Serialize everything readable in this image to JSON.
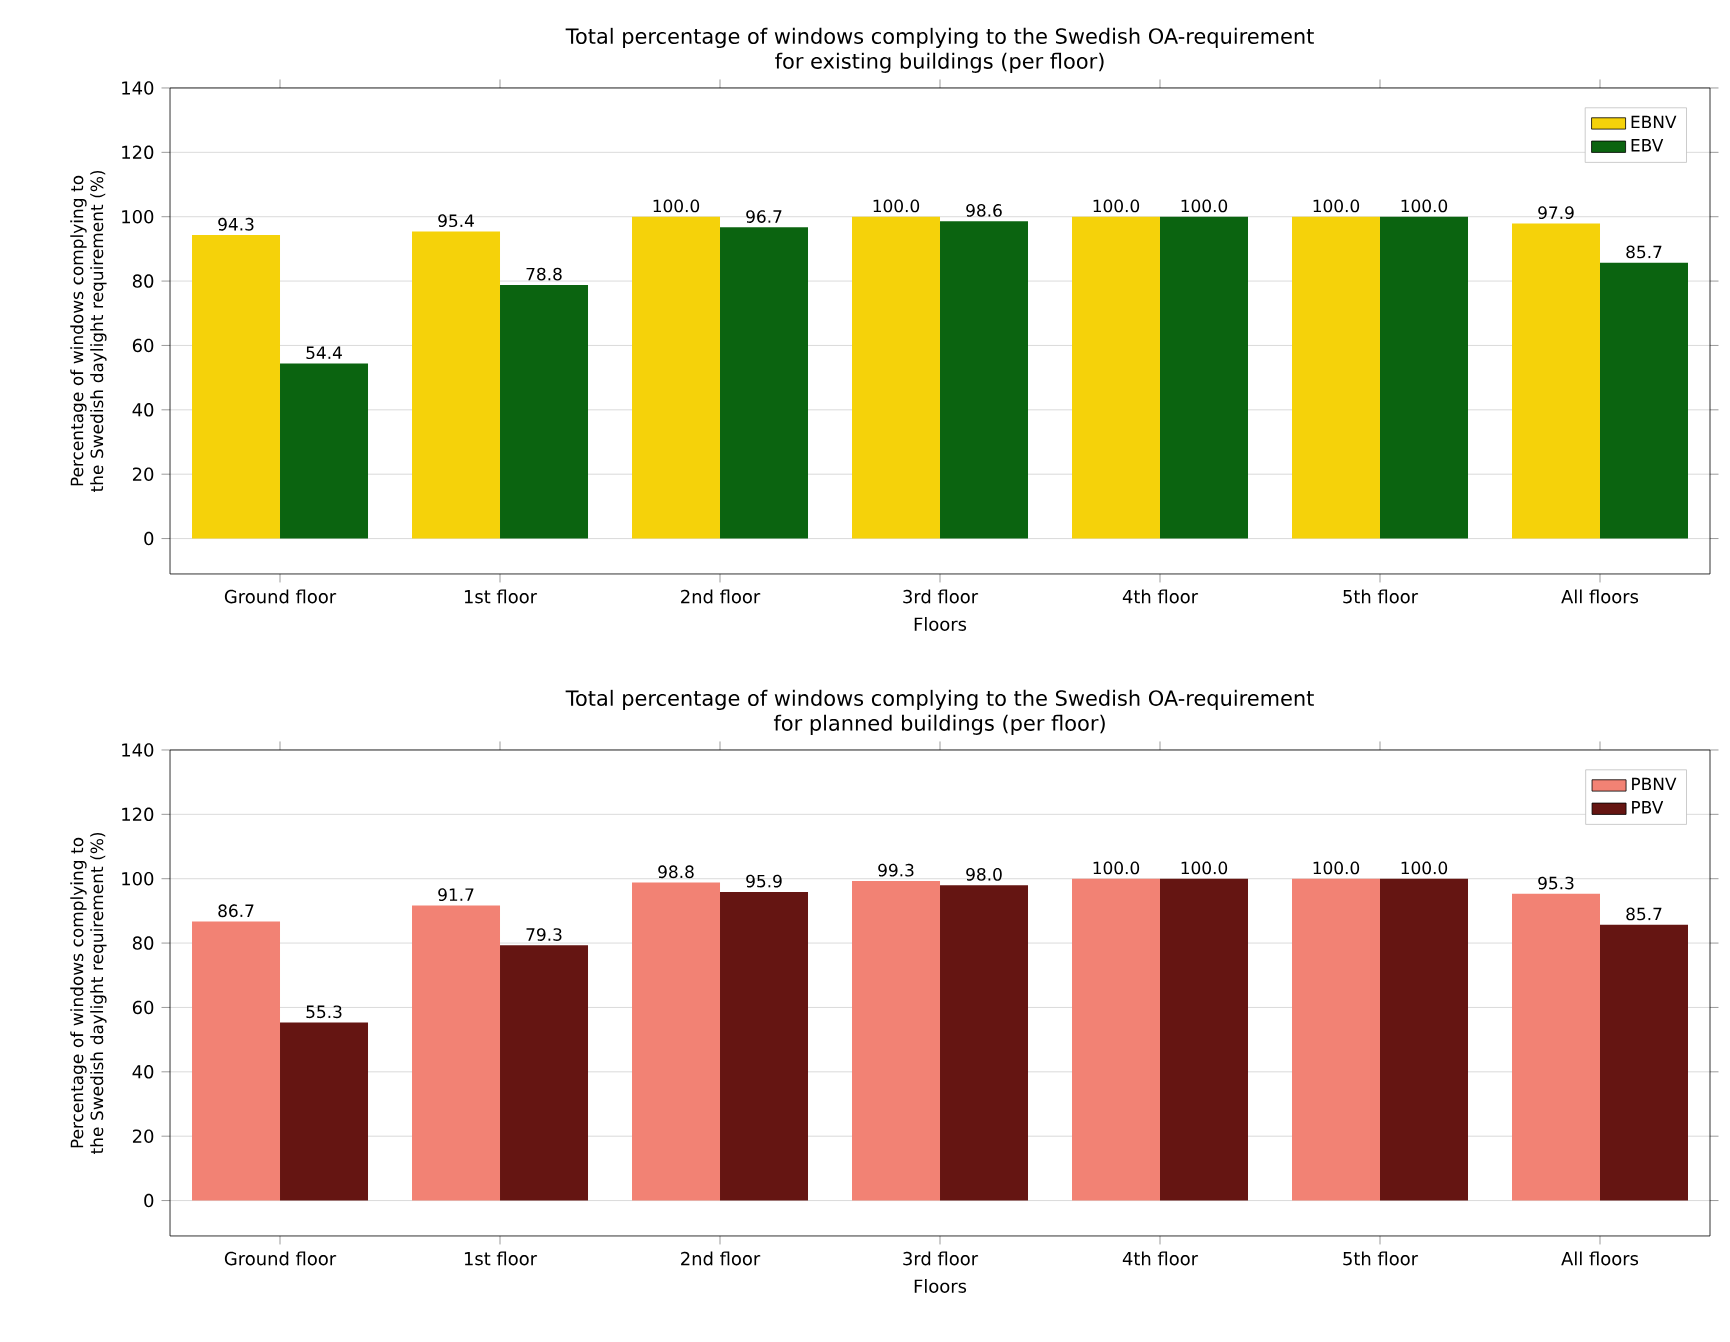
{
  "chart_data": [
    {
      "type": "bar",
      "title": "Total percentage of windows complying to the Swedish OA-requirement",
      "subtitle": "for existing buildings (per floor)",
      "xlabel": "Floors",
      "ylabel": "Percentage of windows complying to the Swedish daylight requirement (%)",
      "categories": [
        "Ground floor",
        "1st floor",
        "2nd floor",
        "3rd floor",
        "4th floor",
        "5th floor",
        "All floors"
      ],
      "series": [
        {
          "name": "EBNV",
          "color": "#f5d20a",
          "values": [
            94.3,
            95.4,
            100,
            100,
            100,
            100,
            97.9
          ],
          "value_labels": [
            "94.3",
            "95.4",
            "100.0",
            "100.0",
            "100.0",
            "100.0",
            "97.9"
          ]
        },
        {
          "name": "EBV",
          "color": "#0b6410",
          "values": [
            54.4,
            78.8,
            96.7,
            98.6,
            100,
            100,
            85.7
          ],
          "value_labels": [
            "54.4",
            "78.8",
            "96.7",
            "98.6",
            "100.0",
            "100.0",
            "85.7"
          ]
        }
      ],
      "ylim": [
        -11,
        140
      ],
      "yticks": [
        0,
        20,
        40,
        60,
        80,
        100,
        120,
        140
      ],
      "grid": "y",
      "legend": "top right"
    },
    {
      "type": "bar",
      "title": "Total percentage of windows complying to the Swedish OA-requirement",
      "subtitle": "for planned buildings (per floor)",
      "xlabel": "Floors",
      "ylabel": "Percentage of windows complying to the Swedish daylight requirement (%)",
      "categories": [
        "Ground floor",
        "1st floor",
        "2nd floor",
        "3rd floor",
        "4th floor",
        "5th floor",
        "All floors"
      ],
      "series": [
        {
          "name": "PBNV",
          "color": "#f28274",
          "values": [
            86.7,
            91.7,
            98.8,
            99.3,
            100,
            100,
            95.3
          ],
          "value_labels": [
            "86.7",
            "91.7",
            "98.8",
            "99.3",
            "100.0",
            "100.0",
            "95.3"
          ]
        },
        {
          "name": "PBV",
          "color": "#651512",
          "values": [
            55.3,
            79.3,
            95.9,
            98,
            100,
            100,
            85.7
          ],
          "value_labels": [
            "55.3",
            "79.3",
            "95.9",
            "98.0",
            "100.0",
            "100.0",
            "85.7"
          ]
        }
      ],
      "ylim": [
        -11,
        140
      ],
      "yticks": [
        0,
        20,
        40,
        60,
        80,
        100,
        120,
        140
      ],
      "grid": "y",
      "legend": "top right"
    }
  ]
}
